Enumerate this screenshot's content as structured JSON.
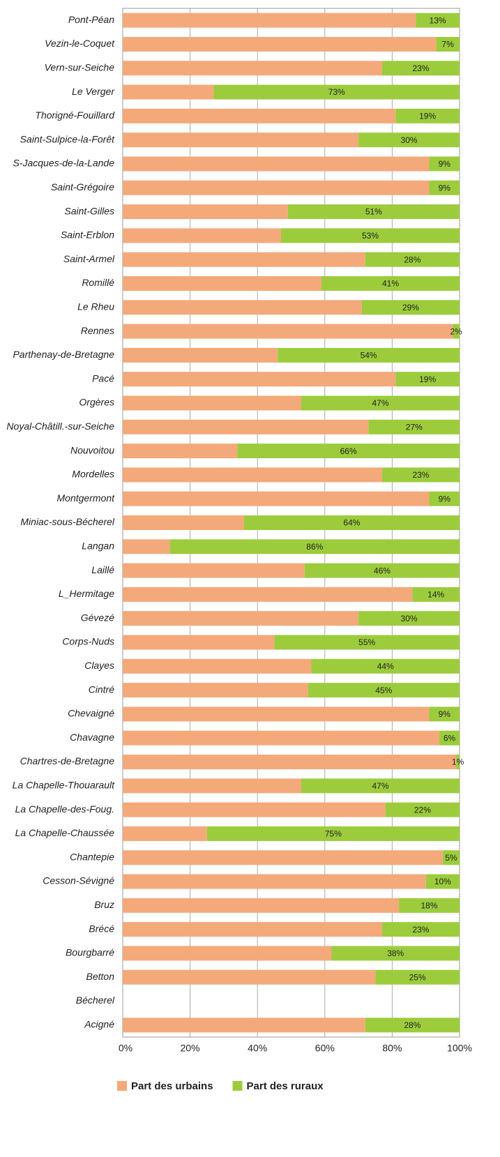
{
  "chart_data": {
    "type": "stacked-barh",
    "categories": [
      "Pont-Péan",
      "Vezin-le-Coquet",
      "Vern-sur-Seiche",
      "Le Verger",
      "Thorigné-Fouillard",
      "Saint-Sulpice-la-Forêt",
      "S-Jacques-de-la-Lande",
      "Saint-Grégoire",
      "Saint-Gilles",
      "Saint-Erblon",
      "Saint-Armel",
      "Romillé",
      "Le Rheu",
      "Rennes",
      "Parthenay-de-Bretagne",
      "Pacé",
      "Orgères",
      "Noyal-Châtill.-sur-Seiche",
      "Nouvoitou",
      "Mordelles",
      "Montgermont",
      "Miniac-sous-Bécherel",
      "Langan",
      "Laillé",
      "L_Hermitage",
      "Gévezé",
      "Corps-Nuds",
      "Clayes",
      "Cintré",
      "Chevaigné",
      "Chavagne",
      "Chartres-de-Bretagne",
      "La Chapelle-Thouarault",
      "La Chapelle-des-Foug.",
      "La Chapelle-Chaussée",
      "Chantepie",
      "Cesson-Sévigné",
      "Bruz",
      "Brécé",
      "Bourgbarré",
      "Betton",
      "Bécherel",
      "Acigné"
    ],
    "series": [
      {
        "name": "Part des urbains",
        "color": "#f4a97a",
        "values": [
          87,
          93,
          77,
          27,
          81,
          70,
          91,
          91,
          49,
          47,
          72,
          59,
          71,
          98,
          46,
          81,
          53,
          73,
          34,
          77,
          91,
          36,
          14,
          54,
          86,
          70,
          45,
          56,
          55,
          91,
          94,
          99,
          53,
          78,
          25,
          95,
          90,
          82,
          77,
          62,
          75,
          null,
          72
        ]
      },
      {
        "name": "Part des ruraux",
        "color": "#9ccc3c",
        "values": [
          13,
          7,
          23,
          73,
          19,
          30,
          9,
          9,
          51,
          53,
          28,
          41,
          29,
          2,
          54,
          19,
          47,
          27,
          66,
          23,
          9,
          64,
          86,
          46,
          14,
          30,
          55,
          44,
          45,
          9,
          6,
          1,
          47,
          22,
          75,
          5,
          10,
          18,
          23,
          38,
          25,
          null,
          28
        ],
        "value_labels": [
          "13%",
          "7%",
          "23%",
          "73%",
          "19%",
          "30%",
          "9%",
          "9%",
          "51%",
          "53%",
          "28%",
          "41%",
          "29%",
          "2%",
          "54%",
          "19%",
          "47%",
          "27%",
          "66%",
          "23%",
          "9%",
          "64%",
          "86%",
          "46%",
          "14%",
          "30%",
          "55%",
          "44%",
          "45%",
          "9%",
          "6%",
          "1%",
          "47%",
          "22%",
          "75%",
          "5%",
          "10%",
          "18%",
          "23%",
          "38%",
          "25%",
          null,
          "28%"
        ]
      }
    ],
    "xlim": [
      0,
      100
    ],
    "xticks": [
      {
        "value": 0,
        "label": "0%"
      },
      {
        "value": 20,
        "label": "20%"
      },
      {
        "value": 40,
        "label": "40%"
      },
      {
        "value": 60,
        "label": "60%"
      },
      {
        "value": 80,
        "label": "80%"
      },
      {
        "value": 100,
        "label": "100%"
      }
    ],
    "grid": true,
    "legend": "bottom"
  }
}
